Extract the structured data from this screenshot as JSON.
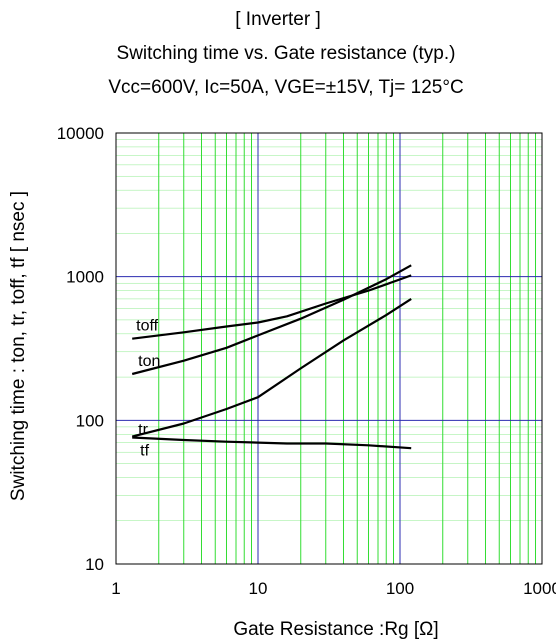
{
  "header": {
    "title": "[ Inverter ]",
    "subtitle": "Switching time  vs.  Gate resistance  (typ.)",
    "conditions": "Vcc=600V, Ic=50A, VGE=±15V, Tj= 125°C"
  },
  "chart_data": {
    "type": "line",
    "xlabel": "Gate Resistance :Rg [Ω]",
    "ylabel": "Switching time  :  ton, tr, toff, tf  [ nsec ]",
    "xscale": "log",
    "yscale": "log",
    "xlim": [
      1,
      1000
    ],
    "ylim": [
      10,
      10000
    ],
    "x_ticks": [
      "1",
      "10",
      "100",
      "1000"
    ],
    "y_ticks": [
      "10",
      "100",
      "1000",
      "10000"
    ],
    "grid": true,
    "grid_colors": {
      "major": "#2b2bb0",
      "minor": "#33dd33",
      "line": "#000000"
    },
    "series": [
      {
        "name": "toff",
        "x": [
          1.3,
          3,
          6,
          10,
          16,
          30,
          60,
          120
        ],
        "y": [
          370,
          410,
          450,
          480,
          530,
          650,
          800,
          1020
        ]
      },
      {
        "name": "ton",
        "x": [
          1.3,
          3,
          6,
          10,
          20,
          40,
          80,
          120
        ],
        "y": [
          210,
          260,
          320,
          390,
          510,
          690,
          960,
          1200
        ]
      },
      {
        "name": "tr",
        "x": [
          1.3,
          3,
          6,
          10,
          20,
          40,
          80,
          120
        ],
        "y": [
          77,
          95,
          120,
          145,
          230,
          360,
          540,
          700
        ]
      },
      {
        "name": "tf",
        "x": [
          1.3,
          3,
          6,
          10,
          16,
          30,
          60,
          120
        ],
        "y": [
          76,
          73,
          71,
          70,
          69,
          69,
          67,
          64
        ]
      }
    ]
  }
}
